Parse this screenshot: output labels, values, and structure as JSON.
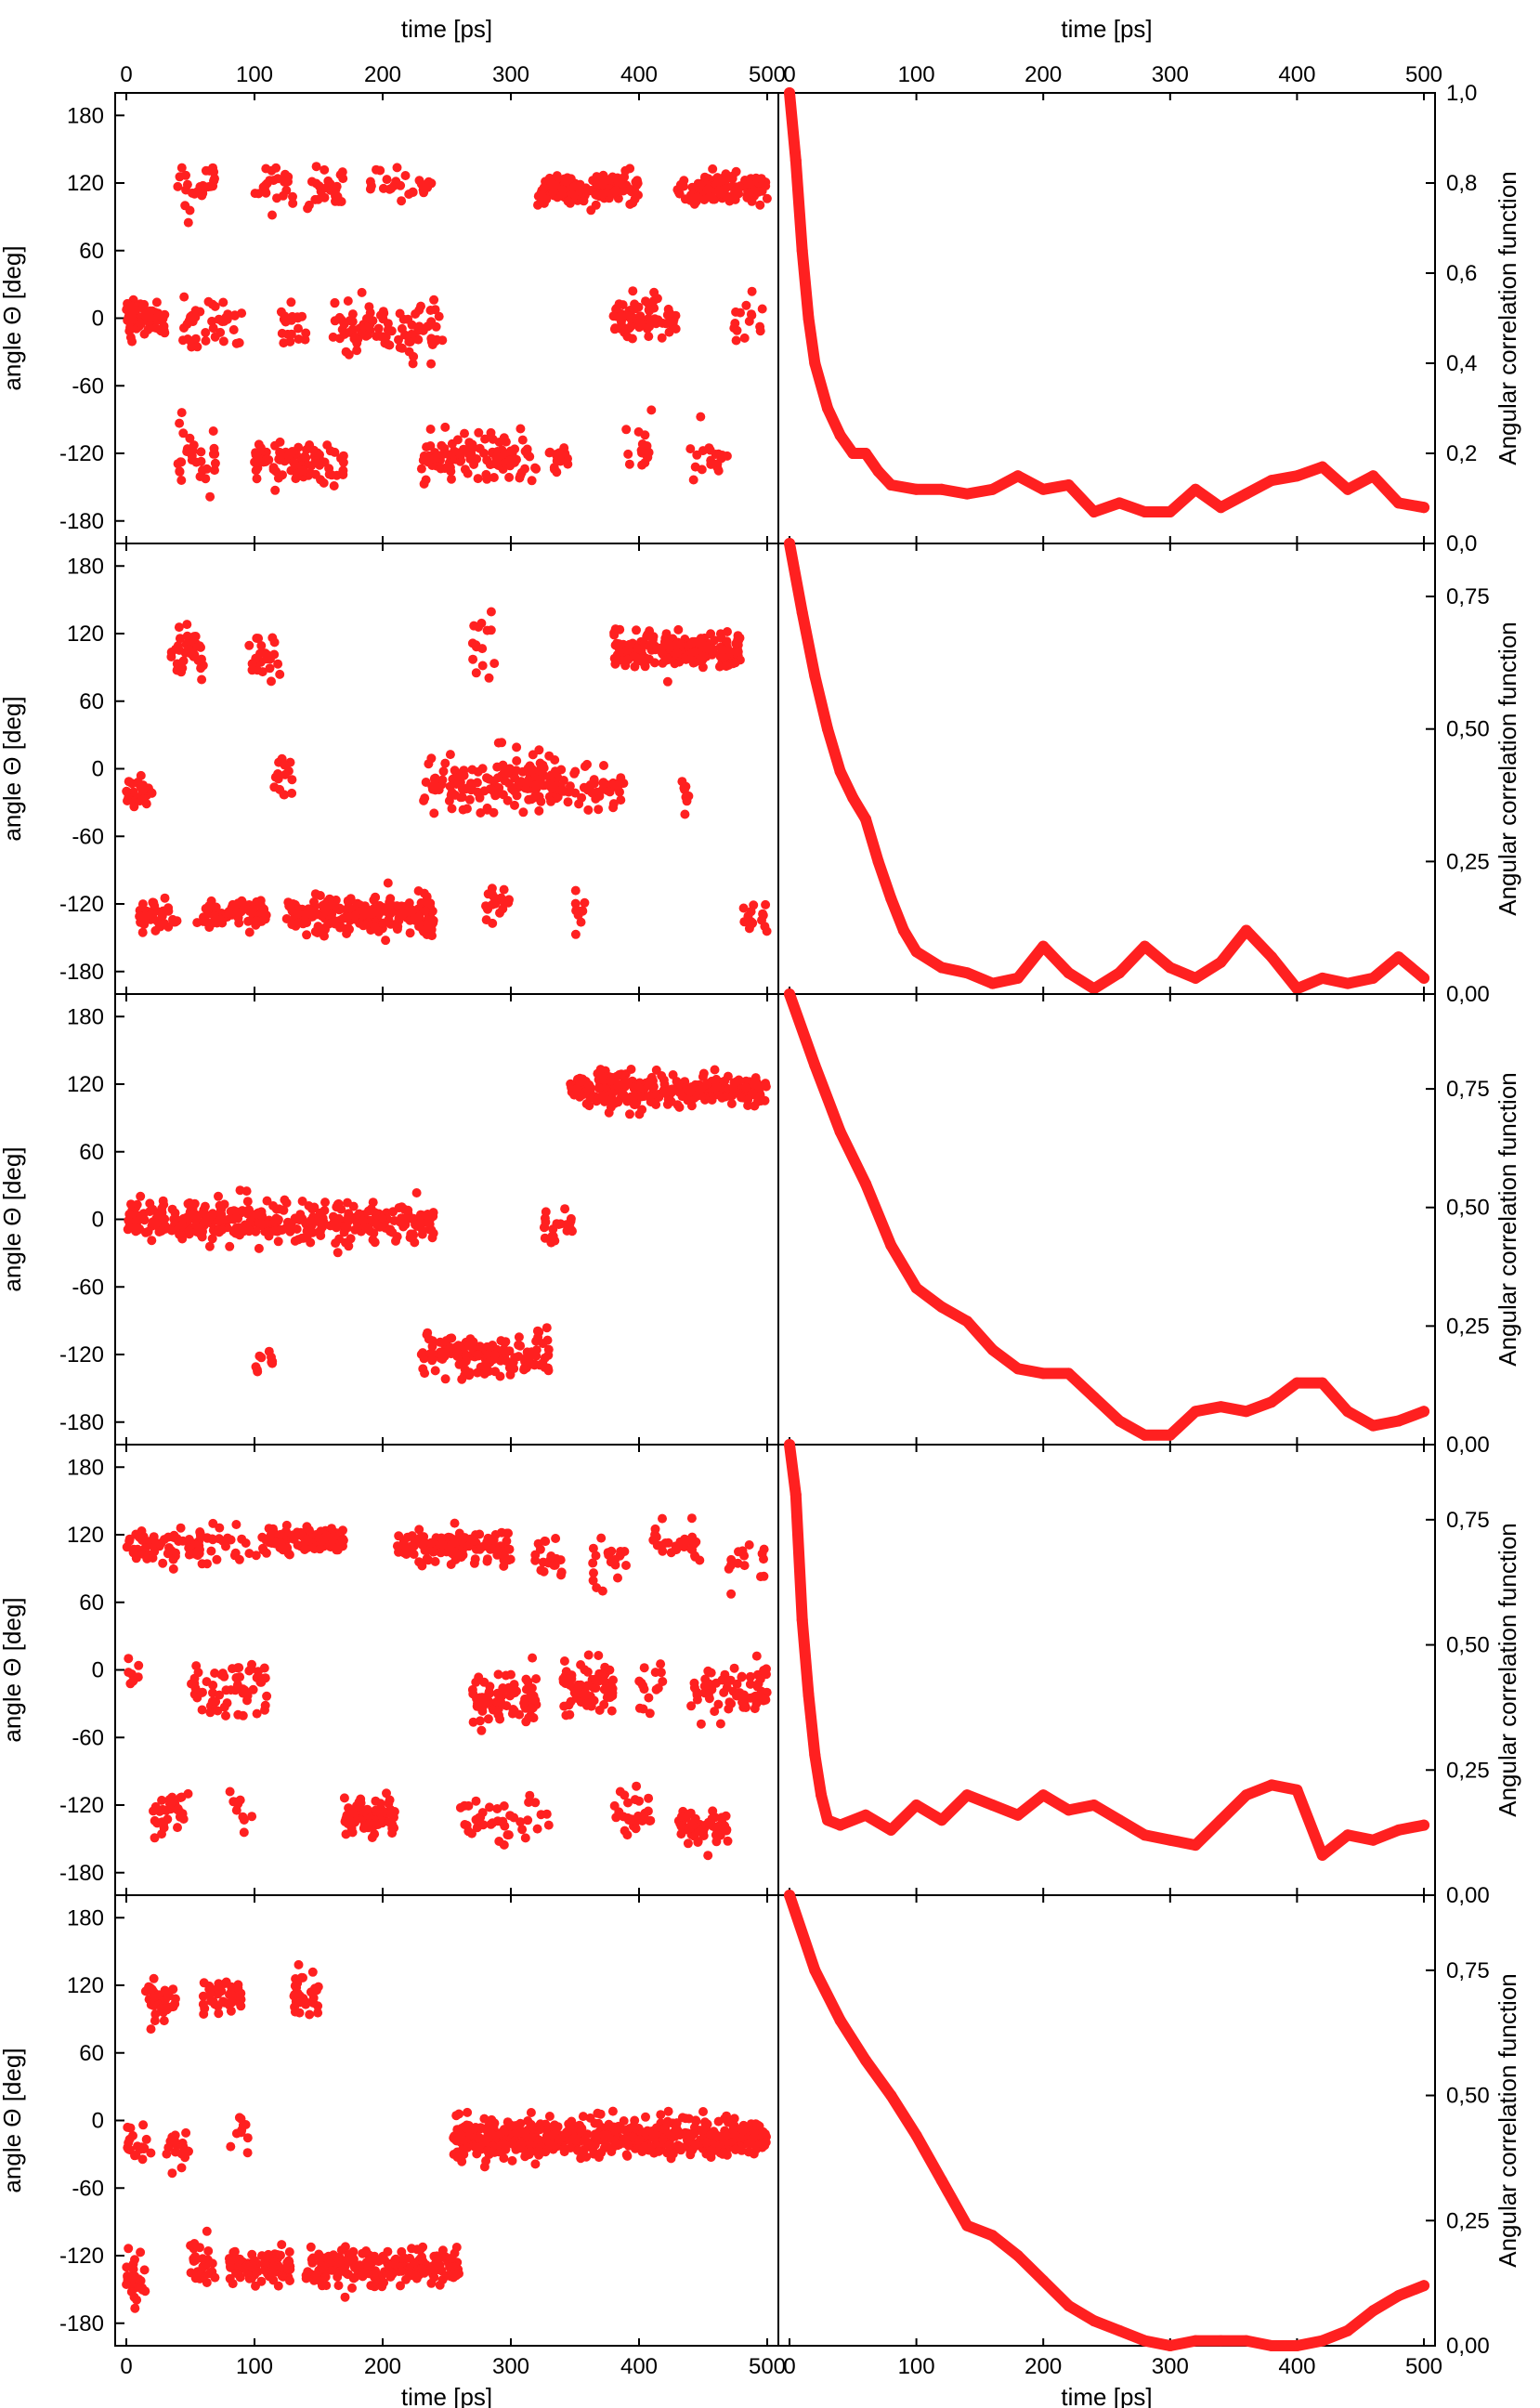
{
  "chart_data": [
    {
      "type": "scatter",
      "panel": "left",
      "row": 0,
      "xlabel_top": "time [ps]",
      "xlabel_bottom": "",
      "ylabel": "angle Θ [deg]",
      "xlim": [
        0,
        500
      ],
      "ylim": [
        -200,
        200
      ],
      "xticks": [
        "0",
        "100",
        "200",
        "300",
        "400",
        "500"
      ],
      "yticks": [
        "180",
        "120",
        "60",
        "0",
        "-60",
        "-120",
        "-180"
      ],
      "color": "#ff2020",
      "clusters": [
        [
          0,
          30,
          0,
          15,
          60
        ],
        [
          40,
          70,
          115,
          20,
          30
        ],
        [
          40,
          70,
          -120,
          20,
          30
        ],
        [
          40,
          90,
          -5,
          20,
          40
        ],
        [
          100,
          130,
          115,
          20,
          25
        ],
        [
          100,
          140,
          -125,
          15,
          50
        ],
        [
          120,
          140,
          -5,
          15,
          20
        ],
        [
          140,
          170,
          115,
          20,
          25
        ],
        [
          130,
          170,
          -130,
          15,
          40
        ],
        [
          160,
          230,
          -10,
          20,
          70
        ],
        [
          190,
          240,
          120,
          15,
          25
        ],
        [
          220,
          250,
          -10,
          20,
          25
        ],
        [
          230,
          320,
          -125,
          20,
          110
        ],
        [
          320,
          400,
          115,
          12,
          170
        ],
        [
          330,
          345,
          -125,
          15,
          15
        ],
        [
          380,
          430,
          0,
          15,
          70
        ],
        [
          390,
          410,
          -110,
          25,
          15
        ],
        [
          430,
          500,
          115,
          12,
          100
        ],
        [
          440,
          470,
          -120,
          20,
          20
        ],
        [
          470,
          500,
          0,
          20,
          15
        ]
      ]
    },
    {
      "type": "line",
      "panel": "right",
      "row": 0,
      "xlabel_top": "time [ps]",
      "xlabel_bottom": "",
      "ylabel": "Angular correlation function",
      "xlim": [
        0,
        500
      ],
      "ylim": [
        0,
        1.0
      ],
      "xticks": [
        "0",
        "100",
        "200",
        "300",
        "400",
        "500"
      ],
      "yticks": [
        "0,0",
        "0,2",
        "0,4",
        "0,6",
        "0,8",
        "1,0"
      ],
      "color": "#ff2020",
      "x": [
        0,
        5,
        10,
        15,
        20,
        30,
        40,
        50,
        60,
        70,
        80,
        100,
        120,
        140,
        160,
        180,
        200,
        220,
        240,
        260,
        280,
        300,
        320,
        340,
        360,
        380,
        400,
        420,
        440,
        460,
        480,
        500
      ],
      "y": [
        1.0,
        0.85,
        0.65,
        0.5,
        0.4,
        0.3,
        0.24,
        0.2,
        0.2,
        0.16,
        0.13,
        0.12,
        0.12,
        0.11,
        0.12,
        0.15,
        0.12,
        0.13,
        0.07,
        0.09,
        0.07,
        0.07,
        0.12,
        0.08,
        0.11,
        0.14,
        0.15,
        0.17,
        0.12,
        0.15,
        0.09,
        0.08
      ]
    },
    {
      "type": "scatter",
      "panel": "left",
      "row": 1,
      "xlabel_top": "",
      "xlabel_bottom": "",
      "ylabel": "angle Θ [deg]",
      "xlim": [
        0,
        500
      ],
      "ylim": [
        -200,
        200
      ],
      "xticks": [],
      "yticks": [
        "180",
        "120",
        "60",
        "0",
        "-60",
        "-120",
        "-180"
      ],
      "color": "#ff2020",
      "clusters": [
        [
          0,
          20,
          -20,
          12,
          30
        ],
        [
          10,
          40,
          -130,
          15,
          40
        ],
        [
          35,
          60,
          105,
          20,
          40
        ],
        [
          55,
          110,
          -130,
          12,
          60
        ],
        [
          95,
          120,
          100,
          20,
          25
        ],
        [
          110,
          130,
          -10,
          20,
          15
        ],
        [
          125,
          240,
          -130,
          15,
          220
        ],
        [
          230,
          290,
          -15,
          20,
          70
        ],
        [
          270,
          290,
          110,
          30,
          15
        ],
        [
          280,
          300,
          -120,
          20,
          20
        ],
        [
          290,
          340,
          -10,
          25,
          80
        ],
        [
          330,
          390,
          -15,
          15,
          60
        ],
        [
          350,
          360,
          -130,
          20,
          10
        ],
        [
          380,
          480,
          105,
          15,
          200
        ],
        [
          430,
          440,
          -20,
          20,
          8
        ],
        [
          480,
          500,
          -130,
          15,
          15
        ]
      ]
    },
    {
      "type": "line",
      "panel": "right",
      "row": 1,
      "xlabel_top": "",
      "xlabel_bottom": "",
      "ylabel": "Angular correlation function",
      "xlim": [
        0,
        500
      ],
      "ylim": [
        0,
        0.85
      ],
      "xticks": [],
      "yticks": [
        "0,00",
        "0,25",
        "0,50",
        "0,75"
      ],
      "color": "#ff2020",
      "x": [
        0,
        10,
        20,
        30,
        40,
        50,
        60,
        70,
        80,
        90,
        100,
        120,
        140,
        160,
        180,
        200,
        220,
        240,
        260,
        280,
        300,
        320,
        340,
        360,
        380,
        400,
        420,
        440,
        460,
        480,
        500
      ],
      "y": [
        0.85,
        0.72,
        0.6,
        0.5,
        0.42,
        0.37,
        0.33,
        0.25,
        0.18,
        0.12,
        0.08,
        0.05,
        0.04,
        0.02,
        0.03,
        0.09,
        0.04,
        0.01,
        0.04,
        0.09,
        0.05,
        0.03,
        0.06,
        0.12,
        0.07,
        0.01,
        0.03,
        0.02,
        0.03,
        0.07,
        0.03
      ]
    },
    {
      "type": "scatter",
      "panel": "left",
      "row": 2,
      "xlabel_top": "",
      "xlabel_bottom": "",
      "ylabel": "angle Θ [deg]",
      "xlim": [
        0,
        500
      ],
      "ylim": [
        -200,
        200
      ],
      "xticks": [],
      "yticks": [
        "180",
        "120",
        "60",
        "0",
        "-60",
        "-120",
        "-180"
      ],
      "color": "#ff2020",
      "clusters": [
        [
          0,
          240,
          -2,
          15,
          400
        ],
        [
          100,
          115,
          -130,
          15,
          10
        ],
        [
          230,
          330,
          -120,
          18,
          140
        ],
        [
          325,
          350,
          -5,
          15,
          25
        ],
        [
          345,
          500,
          115,
          13,
          280
        ]
      ]
    },
    {
      "type": "line",
      "panel": "right",
      "row": 2,
      "xlabel_top": "",
      "xlabel_bottom": "",
      "ylabel": "Angular correlation function",
      "xlim": [
        0,
        500
      ],
      "ylim": [
        0,
        0.95
      ],
      "xticks": [],
      "yticks": [
        "0,00",
        "0,25",
        "0,50",
        "0,75"
      ],
      "color": "#ff2020",
      "x": [
        0,
        20,
        40,
        60,
        80,
        100,
        120,
        140,
        160,
        180,
        200,
        220,
        240,
        260,
        280,
        300,
        320,
        340,
        360,
        380,
        400,
        420,
        440,
        460,
        480,
        500
      ],
      "y": [
        0.95,
        0.8,
        0.66,
        0.55,
        0.42,
        0.33,
        0.29,
        0.26,
        0.2,
        0.16,
        0.15,
        0.15,
        0.1,
        0.05,
        0.02,
        0.02,
        0.07,
        0.08,
        0.07,
        0.09,
        0.13,
        0.13,
        0.07,
        0.04,
        0.05,
        0.07
      ]
    },
    {
      "type": "scatter",
      "panel": "left",
      "row": 3,
      "xlabel_top": "",
      "xlabel_bottom": "",
      "ylabel": "angle Θ [deg]",
      "xlim": [
        0,
        500
      ],
      "ylim": [
        -200,
        200
      ],
      "xticks": [],
      "yticks": [
        "180",
        "120",
        "60",
        "0",
        "-60",
        "-120",
        "-180"
      ],
      "color": "#ff2020",
      "clusters": [
        [
          0,
          60,
          110,
          15,
          70
        ],
        [
          0,
          10,
          -5,
          15,
          8
        ],
        [
          20,
          50,
          -130,
          20,
          30
        ],
        [
          50,
          110,
          -15,
          25,
          60
        ],
        [
          50,
          110,
          110,
          15,
          30
        ],
        [
          80,
          100,
          -130,
          20,
          10
        ],
        [
          110,
          170,
          115,
          10,
          100
        ],
        [
          170,
          210,
          -130,
          15,
          80
        ],
        [
          210,
          300,
          110,
          12,
          120
        ],
        [
          260,
          330,
          -135,
          20,
          40
        ],
        [
          270,
          320,
          -25,
          25,
          80
        ],
        [
          310,
          340,
          100,
          25,
          20
        ],
        [
          340,
          380,
          -15,
          20,
          70
        ],
        [
          360,
          390,
          100,
          20,
          20
        ],
        [
          380,
          410,
          -130,
          15,
          30
        ],
        [
          400,
          420,
          -15,
          20,
          15
        ],
        [
          410,
          450,
          110,
          15,
          30
        ],
        [
          430,
          470,
          -140,
          15,
          60
        ],
        [
          440,
          500,
          -20,
          25,
          70
        ],
        [
          470,
          500,
          100,
          20,
          15
        ]
      ]
    },
    {
      "type": "line",
      "panel": "right",
      "row": 3,
      "xlabel_top": "",
      "xlabel_bottom": "",
      "ylabel": "Angular correlation function",
      "xlim": [
        0,
        500
      ],
      "ylim": [
        0,
        0.9
      ],
      "xticks": [],
      "yticks": [
        "0,00",
        "0,25",
        "0,50",
        "0,75"
      ],
      "color": "#ff2020",
      "x": [
        0,
        5,
        10,
        15,
        20,
        25,
        30,
        40,
        60,
        80,
        100,
        120,
        140,
        160,
        180,
        200,
        220,
        240,
        260,
        280,
        300,
        320,
        340,
        360,
        380,
        400,
        420,
        440,
        460,
        480,
        500
      ],
      "y": [
        0.9,
        0.8,
        0.55,
        0.4,
        0.28,
        0.2,
        0.15,
        0.14,
        0.16,
        0.13,
        0.18,
        0.15,
        0.2,
        0.18,
        0.16,
        0.2,
        0.17,
        0.18,
        0.15,
        0.12,
        0.11,
        0.1,
        0.15,
        0.2,
        0.22,
        0.21,
        0.08,
        0.12,
        0.11,
        0.13,
        0.14
      ]
    },
    {
      "type": "scatter",
      "panel": "left",
      "row": 4,
      "xlabel_top": "",
      "xlabel_bottom": "time [ps]",
      "ylabel": "angle Θ [deg]",
      "xlim": [
        0,
        500
      ],
      "ylim": [
        -200,
        200
      ],
      "xticks": [
        "0",
        "100",
        "200",
        "300",
        "400",
        "500"
      ],
      "yticks": [
        "180",
        "120",
        "60",
        "0",
        "-60",
        "-120",
        "-180"
      ],
      "color": "#ff2020",
      "clusters": [
        [
          0,
          15,
          -140,
          20,
          30
        ],
        [
          0,
          20,
          -20,
          15,
          20
        ],
        [
          15,
          40,
          105,
          15,
          40
        ],
        [
          30,
          50,
          -20,
          20,
          20
        ],
        [
          50,
          70,
          -130,
          20,
          30
        ],
        [
          60,
          90,
          110,
          15,
          40
        ],
        [
          80,
          95,
          -5,
          20,
          10
        ],
        [
          80,
          130,
          -130,
          15,
          80
        ],
        [
          130,
          150,
          110,
          20,
          30
        ],
        [
          140,
          260,
          -130,
          15,
          200
        ],
        [
          255,
          500,
          -15,
          15,
          600
        ]
      ]
    },
    {
      "type": "line",
      "panel": "right",
      "row": 4,
      "xlabel_top": "",
      "xlabel_bottom": "time [ps]",
      "ylabel": "Angular correlation function",
      "xlim": [
        0,
        500
      ],
      "ylim": [
        0,
        0.9
      ],
      "xticks": [
        "0",
        "100",
        "200",
        "300",
        "400",
        "500"
      ],
      "yticks": [
        "0,00",
        "0,25",
        "0,50",
        "0,75"
      ],
      "color": "#ff2020",
      "x": [
        0,
        20,
        40,
        60,
        80,
        100,
        120,
        140,
        160,
        180,
        200,
        220,
        240,
        260,
        280,
        300,
        320,
        340,
        360,
        380,
        400,
        420,
        440,
        460,
        480,
        500
      ],
      "y": [
        0.9,
        0.75,
        0.65,
        0.57,
        0.5,
        0.42,
        0.33,
        0.24,
        0.22,
        0.18,
        0.13,
        0.08,
        0.05,
        0.03,
        0.01,
        0.0,
        0.01,
        0.01,
        0.01,
        0.0,
        0.0,
        0.01,
        0.03,
        0.07,
        0.1,
        0.12
      ]
    }
  ]
}
